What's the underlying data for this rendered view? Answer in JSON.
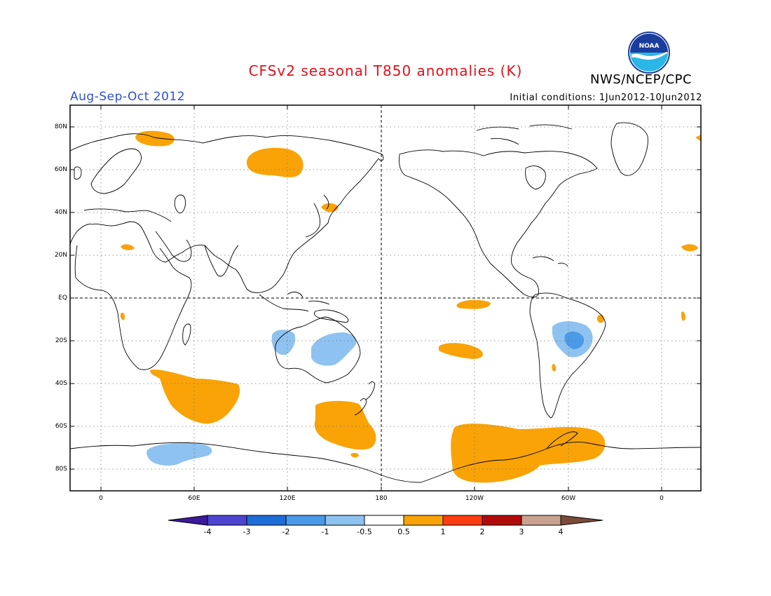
{
  "title": "CFSv2 seasonal T850 anomalies (K)",
  "org": "NWS/NCEP/CPC",
  "logo_text": "NOAA",
  "season": "Aug-Sep-Oct 2012",
  "initial_conditions": "Initial conditions: 1Jun2012-10Jun2012",
  "lat_labels": [
    "80N",
    "60N",
    "40N",
    "20N",
    "EQ",
    "20S",
    "40S",
    "60S",
    "80S"
  ],
  "lon_labels": [
    "0",
    "60E",
    "120E",
    "180",
    "120W",
    "60W",
    "0"
  ],
  "colorbar": {
    "labels": [
      "-4",
      "-3",
      "-2",
      "-1",
      "-0.5",
      "0.5",
      "1",
      "2",
      "3",
      "4"
    ],
    "colors": [
      "#3c1a9e",
      "#4e44d0",
      "#1e6cd8",
      "#4a9ae8",
      "#8ec2f0",
      "#ffffff",
      "#f9a307",
      "#ff3c11",
      "#b00b0b",
      "#c8a28e",
      "#7a4b38"
    ]
  },
  "colors": {
    "title": "#e0101a",
    "season": "#2b4ed8",
    "warm": "#f9a307",
    "cool": "#8ec2f0",
    "cool_dark": "#4a9ae8"
  },
  "anomaly_regions": [
    {
      "name": "north-atlantic-arctic-warm",
      "type": "warm"
    },
    {
      "name": "siberia-warm",
      "type": "warm"
    },
    {
      "name": "japan-warm",
      "type": "warm"
    },
    {
      "name": "sahara-warm",
      "type": "warm"
    },
    {
      "name": "southwest-africa-warm",
      "type": "warm"
    },
    {
      "name": "south-indian-ocean-warm",
      "type": "warm"
    },
    {
      "name": "southwest-pacific-warm",
      "type": "warm"
    },
    {
      "name": "equatorial-pacific-warm",
      "type": "warm"
    },
    {
      "name": "south-pacific-warm",
      "type": "warm"
    },
    {
      "name": "southeast-pacific-antarctic-warm",
      "type": "warm"
    },
    {
      "name": "brazil-coast-warm",
      "type": "warm"
    },
    {
      "name": "north-africa-east-edge-warm",
      "type": "warm"
    },
    {
      "name": "west-australia-cool",
      "type": "cool"
    },
    {
      "name": "east-australia-cool",
      "type": "cool"
    },
    {
      "name": "brazil-cool",
      "type": "cool"
    },
    {
      "name": "antarctica-indian-sector-cool",
      "type": "cool"
    }
  ]
}
